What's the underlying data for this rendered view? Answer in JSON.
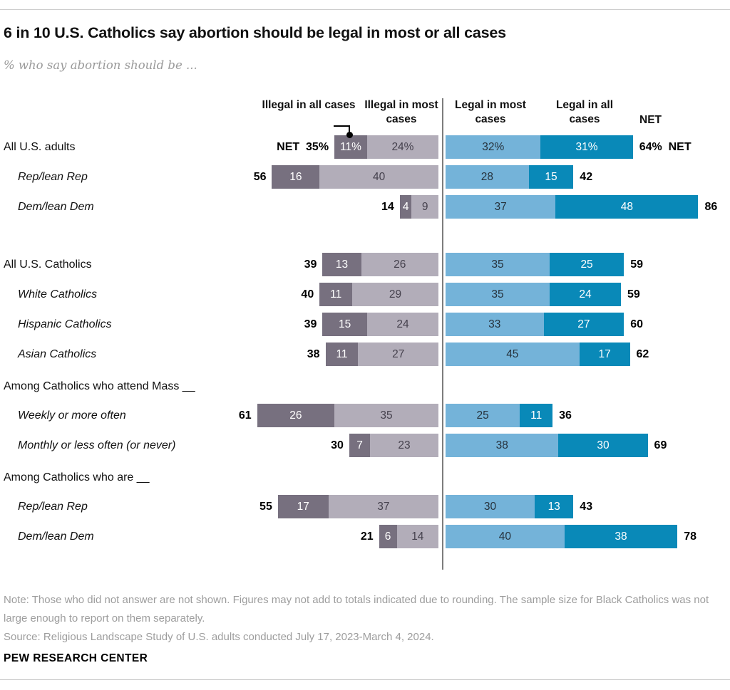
{
  "title": "6 in 10 U.S. Catholics say abortion should be legal in most or all cases",
  "subtitle": "% who say abortion should be ...",
  "legend": {
    "illegal_all": "Illegal in all cases",
    "illegal_most": "Illegal in most cases",
    "legal_most": "Legal in most cases",
    "legal_all": "Legal in all cases",
    "net": "NET"
  },
  "colors": {
    "illegal_all": "#77707f",
    "illegal_most": "#b2adb9",
    "legal_most": "#74b3d9",
    "legal_all": "#0989b8"
  },
  "chart_data": {
    "type": "bar",
    "stacked": true,
    "orientation": "horizontal",
    "unit": "%",
    "axis_gap_divider": true,
    "series": [
      "Illegal in all cases",
      "Illegal in most cases",
      "Legal in most cases",
      "Legal in all cases"
    ],
    "rows": [
      {
        "type": "bar",
        "label": "All U.S. adults",
        "indent": false,
        "new_group": false,
        "net_left": "NET  35%",
        "values": [
          11,
          24,
          32,
          31
        ],
        "value_labels": [
          "11%",
          "24%",
          "32%",
          "31%"
        ],
        "net_right": "64%  NET"
      },
      {
        "type": "bar",
        "label": "Rep/lean Rep",
        "indent": true,
        "new_group": false,
        "net_left": "56",
        "values": [
          16,
          40,
          28,
          15
        ],
        "value_labels": [
          "16",
          "40",
          "28",
          "15"
        ],
        "net_right": "42"
      },
      {
        "type": "bar",
        "label": "Dem/lean Dem",
        "indent": true,
        "new_group": false,
        "net_left": "14",
        "values": [
          4,
          9,
          37,
          48
        ],
        "value_labels": [
          "4",
          "9",
          "37",
          "48"
        ],
        "net_right": "86"
      },
      {
        "type": "bar",
        "label": "All U.S. Catholics",
        "indent": false,
        "new_group": true,
        "net_left": "39",
        "values": [
          13,
          26,
          35,
          25
        ],
        "value_labels": [
          "13",
          "26",
          "35",
          "25"
        ],
        "net_right": "59"
      },
      {
        "type": "bar",
        "label": "White Catholics",
        "indent": true,
        "new_group": false,
        "net_left": "40",
        "values": [
          11,
          29,
          35,
          24
        ],
        "value_labels": [
          "11",
          "29",
          "35",
          "24"
        ],
        "net_right": "59"
      },
      {
        "type": "bar",
        "label": "Hispanic Catholics",
        "indent": true,
        "new_group": false,
        "net_left": "39",
        "values": [
          15,
          24,
          33,
          27
        ],
        "value_labels": [
          "15",
          "24",
          "33",
          "27"
        ],
        "net_right": "60"
      },
      {
        "type": "bar",
        "label": "Asian Catholics",
        "indent": true,
        "new_group": false,
        "net_left": "38",
        "values": [
          11,
          27,
          45,
          17
        ],
        "value_labels": [
          "11",
          "27",
          "45",
          "17"
        ],
        "net_right": "62"
      },
      {
        "type": "section",
        "label": "Among Catholics who attend Mass __"
      },
      {
        "type": "bar",
        "label": "Weekly or more often",
        "indent": true,
        "new_group": false,
        "net_left": "61",
        "values": [
          26,
          35,
          25,
          11
        ],
        "value_labels": [
          "26",
          "35",
          "25",
          "11"
        ],
        "net_right": "36"
      },
      {
        "type": "bar",
        "label": "Monthly or less often (or never)",
        "indent": true,
        "new_group": false,
        "net_left": "30",
        "values": [
          7,
          23,
          38,
          30
        ],
        "value_labels": [
          "7",
          "23",
          "38",
          "30"
        ],
        "net_right": "69"
      },
      {
        "type": "section",
        "label": "Among Catholics who are __"
      },
      {
        "type": "bar",
        "label": "Rep/lean Rep",
        "indent": true,
        "new_group": false,
        "net_left": "55",
        "values": [
          17,
          37,
          30,
          13
        ],
        "value_labels": [
          "17",
          "37",
          "30",
          "13"
        ],
        "net_right": "43"
      },
      {
        "type": "bar",
        "label": "Dem/lean Dem",
        "indent": true,
        "new_group": false,
        "net_left": "21",
        "values": [
          6,
          14,
          40,
          38
        ],
        "value_labels": [
          "6",
          "14",
          "40",
          "38"
        ],
        "net_right": "78"
      }
    ]
  },
  "note": "Note: Those who did not answer are not shown. Figures may not add to totals indicated due to rounding. The sample size for Black Catholics was not large enough to report on them separately.",
  "source": "Source: Religious Landscape Study of U.S. adults conducted July 17, 2023-March 4, 2024.",
  "brand": "PEW RESEARCH CENTER"
}
